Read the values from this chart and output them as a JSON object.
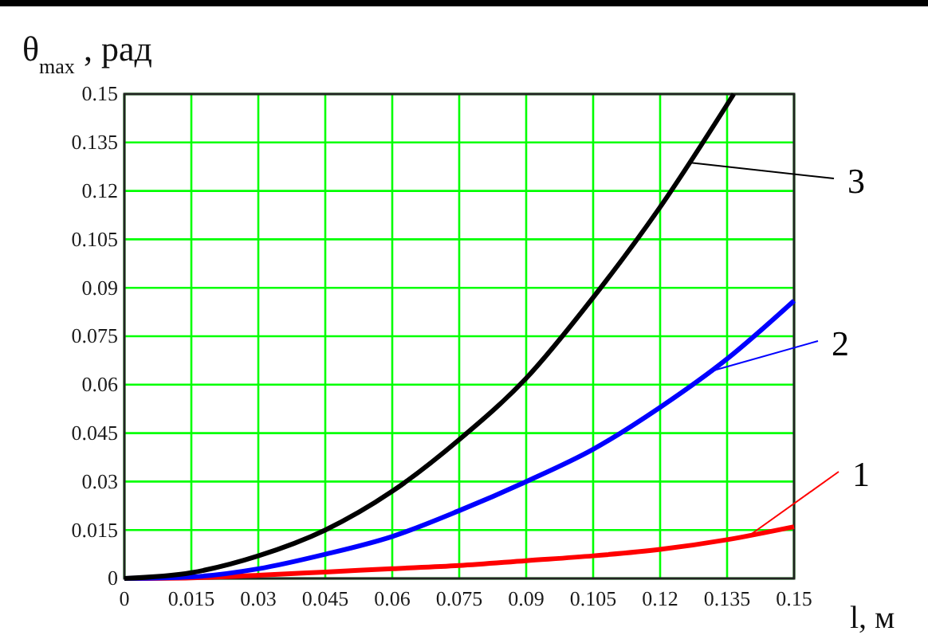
{
  "chart_data": {
    "type": "line",
    "ylabel": "θ$_{max}$ , рад",
    "xlabel": "l, м",
    "xlim": [
      0,
      0.15
    ],
    "ylim": [
      0,
      0.15
    ],
    "xticks": [
      0,
      0.015,
      0.03,
      0.045,
      0.06,
      0.075,
      0.09,
      0.105,
      0.12,
      0.135,
      0.15
    ],
    "yticks": [
      0,
      0.015,
      0.03,
      0.045,
      0.06,
      0.075,
      0.09,
      0.105,
      0.12,
      0.135,
      0.15
    ],
    "grid": true,
    "legend": "right",
    "marker": "none",
    "line_style": "solid",
    "series": [
      {
        "name": "1",
        "color": "#ff0000",
        "x": [
          0,
          0.015,
          0.03,
          0.045,
          0.06,
          0.075,
          0.09,
          0.105,
          0.12,
          0.135,
          0.15
        ],
        "values": [
          0,
          0.0002,
          0.001,
          0.002,
          0.003,
          0.004,
          0.0055,
          0.007,
          0.009,
          0.012,
          0.016
        ]
      },
      {
        "name": "2",
        "color": "#0000ff",
        "x": [
          0,
          0.015,
          0.03,
          0.045,
          0.06,
          0.075,
          0.09,
          0.105,
          0.12,
          0.135,
          0.15
        ],
        "values": [
          0,
          0.0005,
          0.003,
          0.0075,
          0.013,
          0.021,
          0.03,
          0.04,
          0.053,
          0.068,
          0.086
        ]
      },
      {
        "name": "3",
        "color": "#000000",
        "x": [
          0,
          0.015,
          0.03,
          0.045,
          0.06,
          0.075,
          0.09,
          0.105,
          0.12,
          0.1365
        ],
        "values": [
          0,
          0.0018,
          0.007,
          0.015,
          0.027,
          0.043,
          0.062,
          0.087,
          0.115,
          0.15
        ]
      }
    ]
  }
}
